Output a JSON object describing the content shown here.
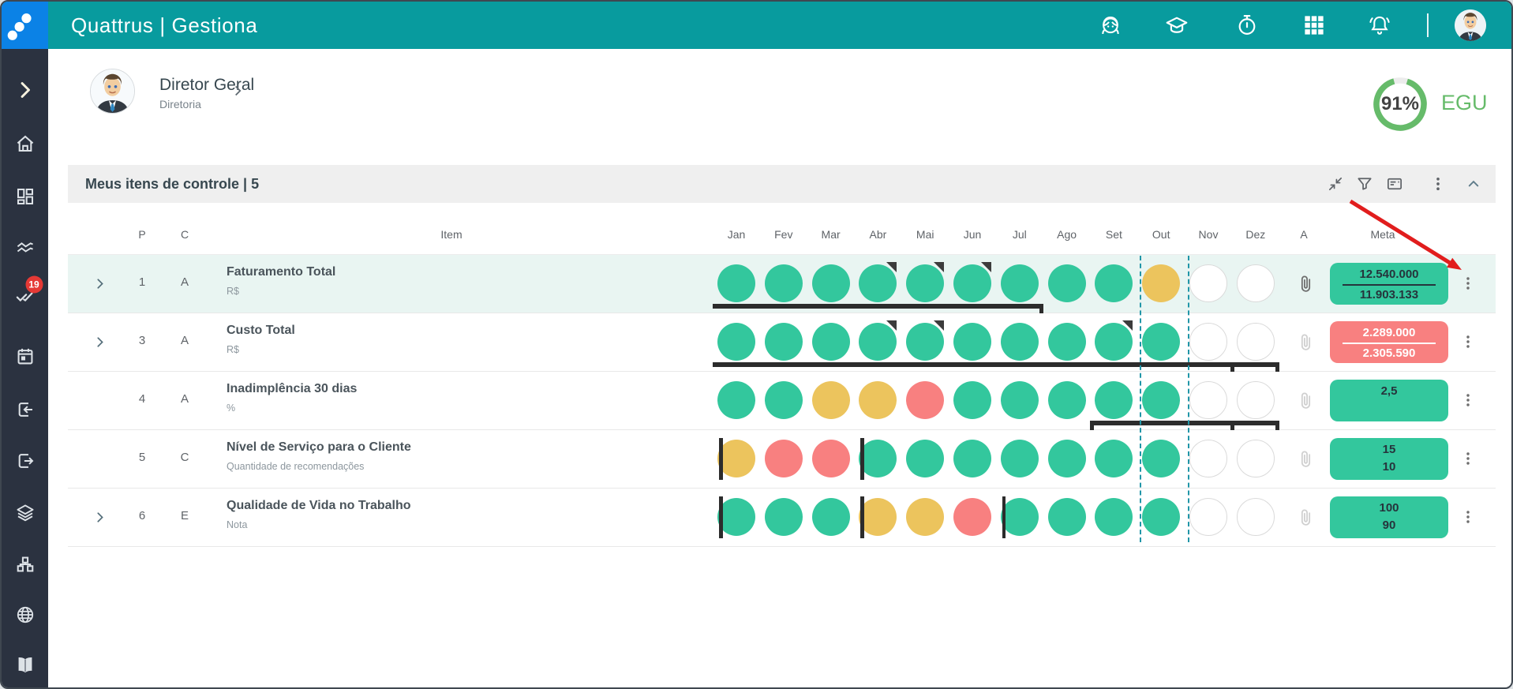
{
  "app": {
    "title": "Quattrus | Gestiona"
  },
  "header": {
    "icons": [
      "assistant",
      "graduation-cap",
      "stopwatch",
      "apps-grid",
      "bell"
    ]
  },
  "sidebar": {
    "items": [
      {
        "icon": "chevron-right"
      },
      {
        "icon": "home"
      },
      {
        "icon": "dashboard"
      },
      {
        "icon": "trending"
      },
      {
        "icon": "tasks",
        "badge": "19"
      },
      {
        "icon": "calendar"
      },
      {
        "icon": "import"
      },
      {
        "icon": "export"
      },
      {
        "icon": "layers"
      },
      {
        "icon": "sitemap"
      },
      {
        "icon": "globe"
      },
      {
        "icon": "book"
      }
    ]
  },
  "profile": {
    "name": "Diretor Geral",
    "role": "Diretoria"
  },
  "egu": {
    "percent": 91,
    "percent_label": "91%",
    "label": "EGU",
    "color": "#66bb6a"
  },
  "panel": {
    "title": "Meus itens de controle | 5",
    "icons": [
      "collapse",
      "filter",
      "card",
      "kebab",
      "chevron-up"
    ]
  },
  "table": {
    "columns": {
      "p": "P",
      "c": "C",
      "item": "Item",
      "a": "A",
      "meta": "Meta"
    },
    "months": [
      "Jan",
      "Fev",
      "Mar",
      "Abr",
      "Mai",
      "Jun",
      "Jul",
      "Ago",
      "Set",
      "Out",
      "Nov",
      "Dez"
    ],
    "current_month": "Out",
    "current_month_index": 9,
    "status_colors": {
      "ok": "#33c79d",
      "warning": "#ecc45d",
      "critical": "#f88080",
      "empty": "#ffffff"
    },
    "rows": [
      {
        "expandable": true,
        "p": "1",
        "c": "A",
        "name": "Faturamento Total",
        "unit": "R$",
        "highlight": true,
        "dots": [
          "g",
          "g",
          "g",
          "gt",
          "gt",
          "gt",
          "g",
          "g",
          "g",
          "y",
          "e",
          "e"
        ],
        "plan_bars": [
          {
            "from": 0,
            "to": 6,
            "tick_start": false,
            "tick_end": true,
            "mid_ticks": []
          }
        ],
        "start_markers": [],
        "attachment": "dark",
        "meta": {
          "style": "green",
          "values": [
            "12.540.000",
            "11.903.133"
          ],
          "divider": true
        }
      },
      {
        "expandable": true,
        "p": "3",
        "c": "A",
        "name": "Custo Total",
        "unit": "R$",
        "highlight": false,
        "dots": [
          "g",
          "g",
          "g",
          "gt",
          "gt",
          "g",
          "g",
          "g",
          "gt",
          "g",
          "e",
          "e"
        ],
        "plan_bars": [
          {
            "from": 0,
            "to": 11,
            "tick_start": false,
            "tick_end": true,
            "mid_ticks": [
              10
            ]
          }
        ],
        "start_markers": [],
        "attachment": "light",
        "meta": {
          "style": "red",
          "values": [
            "2.289.000",
            "2.305.590"
          ],
          "divider": true
        }
      },
      {
        "expandable": false,
        "p": "4",
        "c": "A",
        "name": "Inadimplência 30 dias",
        "unit": "%",
        "highlight": false,
        "dots": [
          "g",
          "g",
          "y",
          "y",
          "r",
          "g",
          "g",
          "g",
          "g",
          "g",
          "e",
          "e"
        ],
        "plan_bars": [
          {
            "from": 8,
            "to": 11,
            "tick_start": true,
            "tick_end": true,
            "mid_ticks": [
              10
            ]
          }
        ],
        "start_markers": [],
        "attachment": "light",
        "meta": {
          "style": "green",
          "values": [
            "2,5"
          ],
          "divider": false
        }
      },
      {
        "expandable": false,
        "p": "5",
        "c": "C",
        "name": "Nível de Serviço para o Cliente",
        "unit": "Quantidade de recomendações",
        "highlight": false,
        "dots": [
          "y",
          "r",
          "r",
          "g",
          "g",
          "g",
          "g",
          "g",
          "g",
          "g",
          "e",
          "e"
        ],
        "plan_bars": [],
        "start_markers": [
          0,
          3
        ],
        "attachment": "light",
        "meta": {
          "style": "green",
          "values": [
            "15",
            "10"
          ],
          "divider": false
        }
      },
      {
        "expandable": true,
        "p": "6",
        "c": "E",
        "name": "Qualidade de Vida no Trabalho",
        "unit": "Nota",
        "highlight": false,
        "dots": [
          "g",
          "g",
          "g",
          "y",
          "y",
          "r",
          "g",
          "g",
          "g",
          "g",
          "e",
          "e"
        ],
        "plan_bars": [],
        "start_markers": [
          0,
          3,
          6
        ],
        "attachment": "light",
        "meta": {
          "style": "green",
          "values": [
            "100",
            "90"
          ],
          "divider": false
        }
      }
    ]
  },
  "annotation": {
    "arrow_color": "#e11d1d"
  }
}
